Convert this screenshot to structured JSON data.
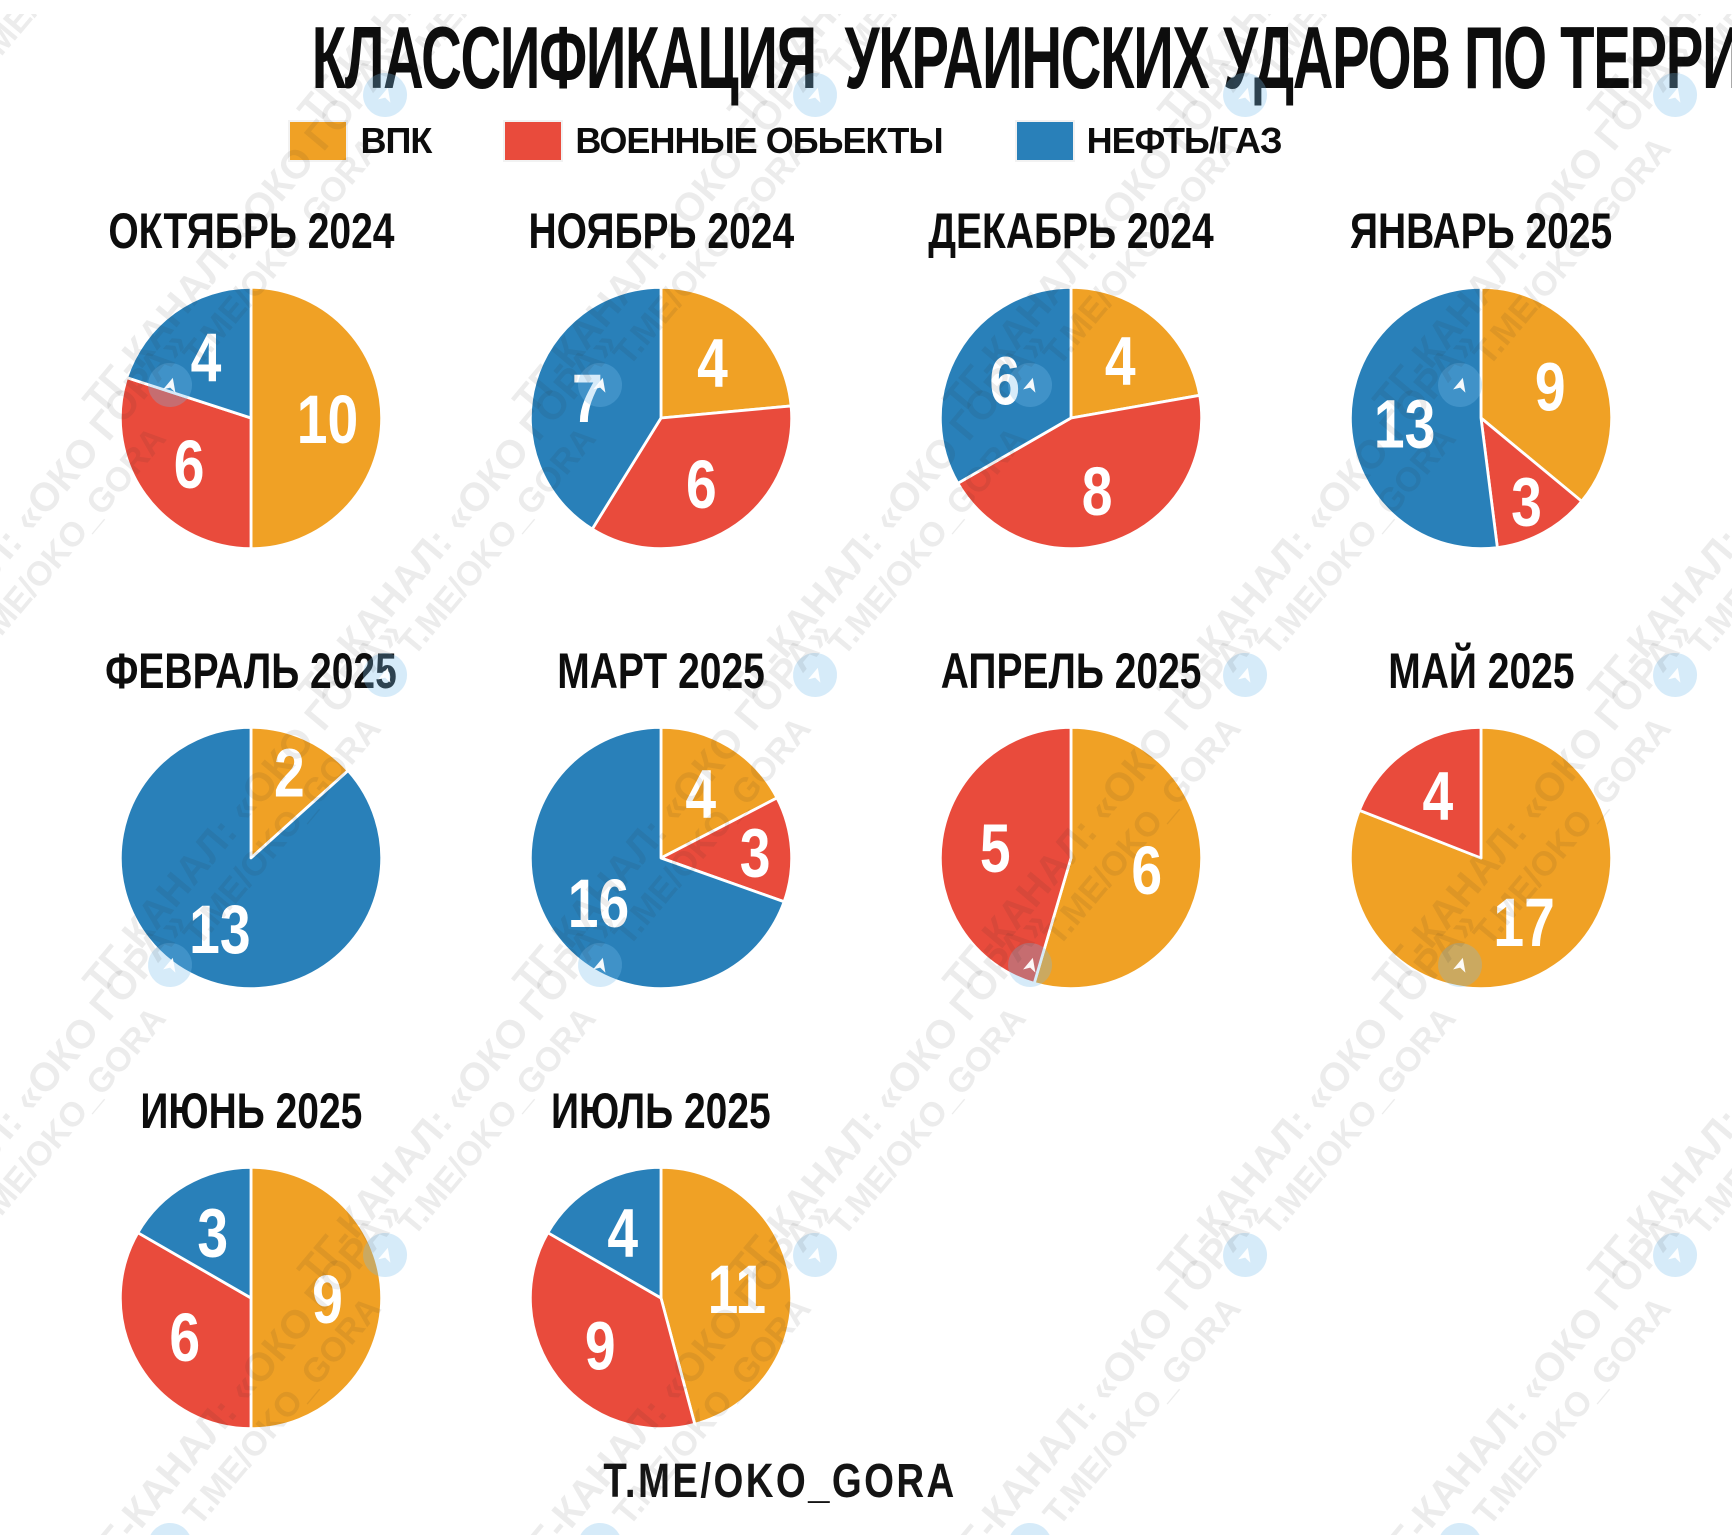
{
  "title": "КЛАССИФИКАЦИЯ  УКРАИНСКИХ УДАРОВ ПО ТЕРРИТОРИИ РФ:",
  "legend": [
    {
      "label": "ВПК",
      "color": "#F0A125"
    },
    {
      "label": "ВОЕННЫЕ ОБЬЕКТЫ",
      "color": "#E94B3C"
    },
    {
      "label": "НЕФТЬ/ГАЗ",
      "color": "#2980B9"
    }
  ],
  "footer": "T.ME/OKO_GORA",
  "watermark": {
    "line1": "ТГ-КАНАЛ: «ОКО ГОРА»",
    "line2": "T.ME/OKO_GORA",
    "icon": "telegram-plane",
    "plane_glyph": "➤"
  },
  "chart_data": {
    "type": "pie",
    "title": "КЛАССИФИКАЦИЯ  УКРАИНСКИХ УДАРОВ ПО ТЕРРИТОРИИ РФ:",
    "categories": [
      "ВПК",
      "ВОЕННЫЕ ОБЬЕКТЫ",
      "НЕФТЬ/ГАЗ"
    ],
    "colors": [
      "#F0A125",
      "#E94B3C",
      "#2980B9"
    ],
    "legend_position": "top",
    "slice_order": "start at 12 o'clock, clockwise: ВПК, ВОЕННЫЕ ОБЬЕКТЫ, НЕФТЬ/ГАЗ",
    "label_style": "white value inside slice",
    "charts": [
      {
        "month": "ОКТЯБРЬ 2024",
        "values": [
          10,
          6,
          4
        ]
      },
      {
        "month": "НОЯБРЬ 2024",
        "values": [
          4,
          6,
          7
        ]
      },
      {
        "month": "ДЕКАБРЬ 2024",
        "values": [
          4,
          8,
          6
        ]
      },
      {
        "month": "ЯНВАРЬ 2025",
        "values": [
          9,
          3,
          13
        ]
      },
      {
        "month": "ФЕВРАЛЬ 2025",
        "values": [
          2,
          0,
          13
        ]
      },
      {
        "month": "МАРТ 2025",
        "values": [
          4,
          3,
          16
        ]
      },
      {
        "month": "АПРЕЛЬ 2025",
        "values": [
          6,
          5,
          0
        ]
      },
      {
        "month": "МАЙ 2025",
        "values": [
          17,
          4,
          0
        ]
      },
      {
        "month": "ИЮНЬ 2025",
        "values": [
          9,
          6,
          3
        ]
      },
      {
        "month": "ИЮЛЬ 2025",
        "values": [
          11,
          9,
          4
        ]
      }
    ]
  }
}
